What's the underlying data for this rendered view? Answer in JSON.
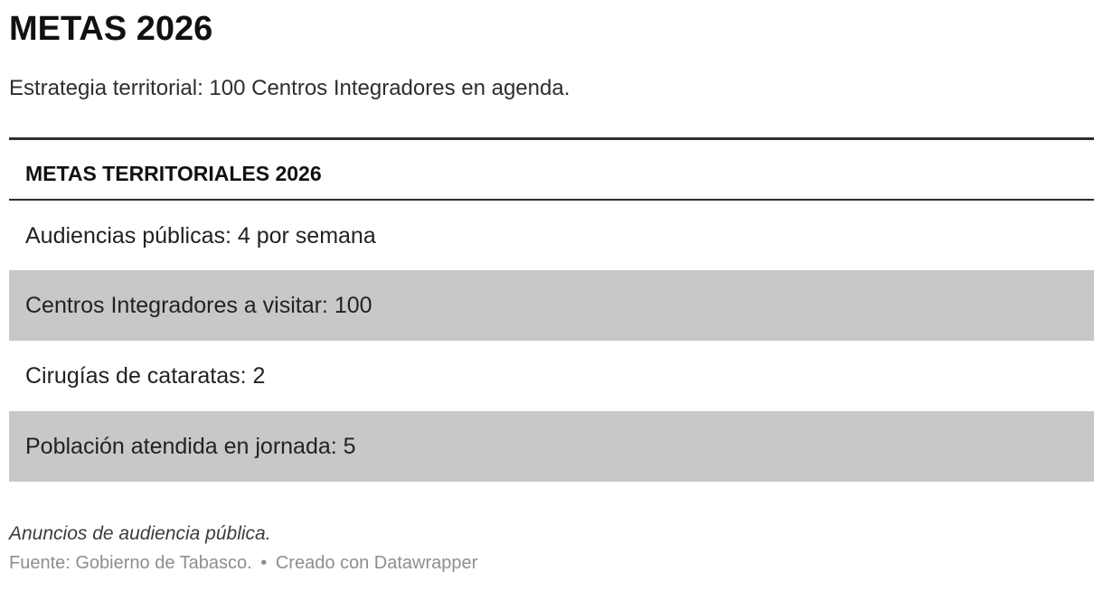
{
  "header": {
    "title": "METAS 2026",
    "subtitle": "Estrategia territorial: 100 Centros Integradores en agenda."
  },
  "footer": {
    "note": "Anuncios de audiencia pública.",
    "source": "Fuente: Gobierno de Tabasco.",
    "separator": "•",
    "attribution": "Creado con Datawrapper"
  },
  "colors": {
    "shaded_row": "#c8c8c8",
    "rule": "#2e2e2e",
    "source_text": "#8e8e8e",
    "background": "#ffffff"
  },
  "chart_data": {
    "type": "table",
    "title": "METAS 2026",
    "subtitle": "Estrategia territorial: 100 Centros Integradores en agenda.",
    "columns": [
      "METAS TERRITORIALES 2026"
    ],
    "rows": [
      [
        "Audiencias públicas: 4 por semana"
      ],
      [
        "Centros Integradores a visitar: 100"
      ],
      [
        "Cirugías de cataratas: 2"
      ],
      [
        "Población atendida en jornada: 5"
      ]
    ],
    "metrics": [
      {
        "label": "Audiencias públicas",
        "value": "4 por semana"
      },
      {
        "label": "Centros Integradores a visitar",
        "value": 100
      },
      {
        "label": "Cirugías de cataratas",
        "value": 2
      },
      {
        "label": "Población atendida en jornada",
        "value": 5
      }
    ],
    "notes": "Anuncios de audiencia pública.",
    "source": "Fuente: Gobierno de Tabasco. • Creado con Datawrapper",
    "layout_hints": {
      "row_shading": "alternate-even",
      "grid": "off",
      "legend": "none"
    }
  }
}
